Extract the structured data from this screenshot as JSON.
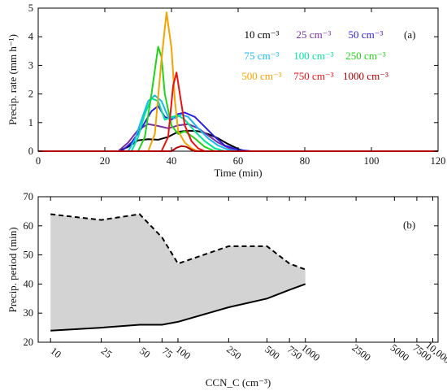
{
  "chart_data": [
    {
      "type": "line",
      "panel_label": "(a)",
      "xlabel": "Time (min)",
      "ylabel": "Precip. rate (mm h⁻¹)",
      "xlim": [
        0,
        120
      ],
      "ylim": [
        0,
        5
      ],
      "xticks": [
        "0",
        "20",
        "40",
        "60",
        "80",
        "100",
        "120"
      ],
      "yticks": [
        "0",
        "1",
        "2",
        "3",
        "4",
        "5"
      ],
      "legend_placement": "top-right, 3 columns",
      "series": [
        {
          "name": "10 cm⁻³",
          "color": "#000000",
          "points": [
            [
              0,
              0
            ],
            [
              24,
              0
            ],
            [
              27,
              0.15
            ],
            [
              30,
              0.38
            ],
            [
              33,
              0.42
            ],
            [
              36,
              0.4
            ],
            [
              39,
              0.5
            ],
            [
              42,
              0.68
            ],
            [
              45,
              0.72
            ],
            [
              48,
              0.7
            ],
            [
              51,
              0.6
            ],
            [
              54,
              0.45
            ],
            [
              57,
              0.25
            ],
            [
              60,
              0.08
            ],
            [
              62,
              0
            ],
            [
              120,
              0
            ]
          ]
        },
        {
          "name": "25 cm⁻³",
          "color": "#7b2fa6",
          "points": [
            [
              0,
              0
            ],
            [
              24,
              0
            ],
            [
              27,
              0.3
            ],
            [
              30,
              0.75
            ],
            [
              33,
              0.95
            ],
            [
              36,
              0.88
            ],
            [
              39,
              0.8
            ],
            [
              42,
              0.9
            ],
            [
              45,
              0.95
            ],
            [
              48,
              0.8
            ],
            [
              51,
              0.55
            ],
            [
              54,
              0.3
            ],
            [
              57,
              0.12
            ],
            [
              60,
              0
            ],
            [
              120,
              0
            ]
          ]
        },
        {
          "name": "50 cm⁻³",
          "color": "#2a1fe0",
          "points": [
            [
              0,
              0
            ],
            [
              25,
              0
            ],
            [
              28,
              0.3
            ],
            [
              31,
              0.8
            ],
            [
              34,
              1.4
            ],
            [
              36,
              1.58
            ],
            [
              38,
              1.2
            ],
            [
              40,
              1.1
            ],
            [
              42,
              1.3
            ],
            [
              44,
              1.35
            ],
            [
              47,
              1.2
            ],
            [
              50,
              0.85
            ],
            [
              53,
              0.5
            ],
            [
              56,
              0.2
            ],
            [
              60,
              0.05
            ],
            [
              64,
              0
            ],
            [
              120,
              0
            ]
          ]
        },
        {
          "name": "75 cm⁻³",
          "color": "#18b8f0",
          "points": [
            [
              0,
              0
            ],
            [
              27,
              0
            ],
            [
              29,
              0.4
            ],
            [
              31,
              1.1
            ],
            [
              33,
              1.75
            ],
            [
              35,
              1.95
            ],
            [
              37,
              1.75
            ],
            [
              39,
              1.2
            ],
            [
              41,
              1.15
            ],
            [
              43,
              1.28
            ],
            [
              45,
              1.2
            ],
            [
              48,
              0.8
            ],
            [
              51,
              0.45
            ],
            [
              54,
              0.2
            ],
            [
              57,
              0.05
            ],
            [
              60,
              0
            ],
            [
              120,
              0
            ]
          ]
        },
        {
          "name": "100 cm⁻³",
          "color": "#00e39a",
          "points": [
            [
              0,
              0
            ],
            [
              28,
              0
            ],
            [
              30,
              0.5
            ],
            [
              32,
              1.3
            ],
            [
              34,
              1.85
            ],
            [
              36,
              1.75
            ],
            [
              38,
              1.1
            ],
            [
              40,
              1.2
            ],
            [
              42,
              1.25
            ],
            [
              44,
              1.1
            ],
            [
              47,
              0.7
            ],
            [
              50,
              0.35
            ],
            [
              53,
              0.1
            ],
            [
              56,
              0
            ],
            [
              120,
              0
            ]
          ]
        },
        {
          "name": "250 cm⁻³",
          "color": "#22d418",
          "points": [
            [
              0,
              0
            ],
            [
              30,
              0
            ],
            [
              32,
              0.5
            ],
            [
              34,
              2.0
            ],
            [
              36,
              3.65
            ],
            [
              37,
              3.3
            ],
            [
              38,
              2.0
            ],
            [
              40,
              0.9
            ],
            [
              42,
              0.6
            ],
            [
              44,
              0.7
            ],
            [
              47,
              0.45
            ],
            [
              50,
              0.15
            ],
            [
              53,
              0
            ],
            [
              120,
              0
            ]
          ]
        },
        {
          "name": "500 cm⁻³",
          "color": "#f5a300",
          "points": [
            [
              0,
              0
            ],
            [
              33,
              0
            ],
            [
              35,
              0.6
            ],
            [
              37,
              3.2
            ],
            [
              38.5,
              4.85
            ],
            [
              40,
              3.6
            ],
            [
              41,
              1.8
            ],
            [
              42,
              0.7
            ],
            [
              44,
              0.3
            ],
            [
              46,
              0.1
            ],
            [
              48,
              0
            ],
            [
              120,
              0
            ]
          ]
        },
        {
          "name": "750 cm⁻³",
          "color": "#ee1010",
          "points": [
            [
              0,
              0
            ],
            [
              37,
              0
            ],
            [
              39,
              0.5
            ],
            [
              40.5,
              2.3
            ],
            [
              41.5,
              2.75
            ],
            [
              42.5,
              2.0
            ],
            [
              44,
              0.9
            ],
            [
              46,
              0.35
            ],
            [
              48,
              0.1
            ],
            [
              50,
              0
            ],
            [
              120,
              0
            ]
          ]
        },
        {
          "name": "1000 cm⁻³",
          "color": "#b00000",
          "points": [
            [
              0,
              0
            ],
            [
              40,
              0
            ],
            [
              41.5,
              0.12
            ],
            [
              43,
              0.18
            ],
            [
              44.5,
              0.15
            ],
            [
              46,
              0.05
            ],
            [
              47,
              0
            ],
            [
              120,
              0
            ]
          ]
        }
      ]
    },
    {
      "type": "area",
      "panel_label": "(b)",
      "xlabel": "CCN_C (cm⁻³)",
      "ylabel": "Precip. period (min)",
      "xscale": "log",
      "xlim": [
        8,
        11000
      ],
      "ylim": [
        20,
        70
      ],
      "xticks": [
        "10",
        "25",
        "50",
        "75",
        "100",
        "250",
        "500",
        "750",
        "1000",
        "2500",
        "5000",
        "7500",
        "10,000"
      ],
      "yticks": [
        "20",
        "30",
        "40",
        "50",
        "60",
        "70"
      ],
      "fill_color": "#d3d3d3",
      "x": [
        10,
        25,
        50,
        75,
        100,
        250,
        500,
        750,
        1000
      ],
      "series": [
        {
          "role": "upper",
          "style": "dashed",
          "values": [
            64,
            62,
            64,
            56,
            47,
            53,
            53,
            47,
            45
          ]
        },
        {
          "role": "lower",
          "style": "solid",
          "values": [
            24,
            25,
            26,
            26,
            27,
            32,
            35,
            38,
            40
          ]
        }
      ]
    }
  ]
}
